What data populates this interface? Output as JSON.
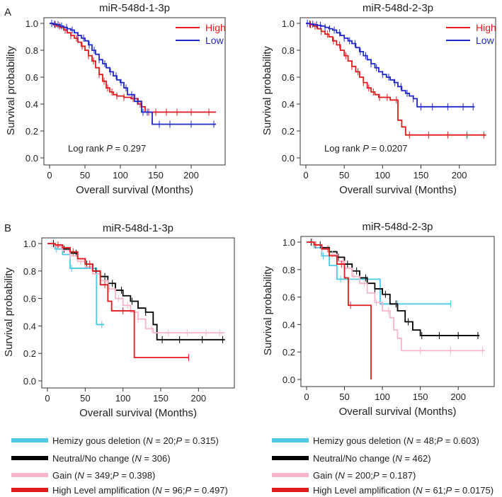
{
  "panel_labels": [
    "A",
    "B"
  ],
  "chart_data": [
    {
      "id": "A1",
      "type": "line",
      "title": "miR-548d-1-3p",
      "xlabel": "Overall survival (Months)",
      "ylabel": "Survival probability",
      "xlim": [
        0,
        240
      ],
      "ylim": [
        0,
        1.0
      ],
      "xticks": [
        0,
        50,
        100,
        150,
        200
      ],
      "xtick_labels": [
        "0",
        "50",
        "100",
        "150",
        "200"
      ],
      "yticks": [
        0,
        0.2,
        0.4,
        0.6,
        0.8,
        1.0
      ],
      "ytick_labels": [
        "0.0",
        "0.2",
        "0.4",
        "0.6",
        "0.8",
        "1.0"
      ],
      "annotation": {
        "prefix": "Log rank ",
        "p_symbol": "P",
        "suffix": " = 0.297"
      },
      "legend_position": "top-right",
      "series": [
        {
          "name": "High",
          "color": "#e31a1c",
          "x": [
            0,
            5,
            10,
            15,
            20,
            25,
            30,
            35,
            40,
            45,
            50,
            55,
            60,
            65,
            70,
            75,
            80,
            85,
            90,
            95,
            100,
            105,
            110,
            115,
            120,
            125,
            130,
            135,
            140,
            150,
            160,
            180,
            200,
            235
          ],
          "y": [
            1.0,
            0.99,
            0.98,
            0.97,
            0.95,
            0.93,
            0.91,
            0.89,
            0.86,
            0.83,
            0.8,
            0.76,
            0.72,
            0.67,
            0.62,
            0.57,
            0.52,
            0.49,
            0.47,
            0.46,
            0.46,
            0.45,
            0.45,
            0.44,
            0.44,
            0.4,
            0.38,
            0.34,
            0.34,
            0.34,
            0.34,
            0.34,
            0.34,
            0.34
          ],
          "censor_x": [
            8,
            14,
            22,
            30,
            38,
            46,
            55,
            62,
            70,
            77,
            82,
            88,
            95,
            105,
            118,
            128,
            140,
            150,
            165,
            180,
            200,
            225
          ]
        },
        {
          "name": "Low",
          "color": "#1f28c8",
          "x": [
            0,
            5,
            10,
            15,
            20,
            25,
            30,
            35,
            40,
            45,
            50,
            55,
            60,
            65,
            70,
            75,
            80,
            85,
            90,
            95,
            100,
            105,
            110,
            115,
            120,
            125,
            130,
            135,
            140,
            145,
            150,
            180,
            200,
            235
          ],
          "y": [
            1.0,
            0.995,
            0.99,
            0.98,
            0.97,
            0.96,
            0.95,
            0.93,
            0.91,
            0.89,
            0.87,
            0.84,
            0.8,
            0.77,
            0.73,
            0.7,
            0.67,
            0.64,
            0.61,
            0.58,
            0.56,
            0.52,
            0.47,
            0.47,
            0.42,
            0.42,
            0.34,
            0.34,
            0.34,
            0.25,
            0.25,
            0.25,
            0.25,
            0.25
          ],
          "censor_x": [
            3,
            7,
            12,
            17,
            24,
            32,
            40,
            48,
            56,
            63,
            70,
            78,
            86,
            94,
            101,
            108,
            116,
            124,
            132,
            138,
            155,
            170,
            200,
            232
          ]
        }
      ]
    },
    {
      "id": "A2",
      "type": "line",
      "title": "miR-548d-2-3p",
      "xlabel": "Overall survival (Months)",
      "ylabel": "Survival probability",
      "xlim": [
        0,
        240
      ],
      "ylim": [
        0,
        1.0
      ],
      "xticks": [
        0,
        50,
        100,
        150,
        200
      ],
      "xtick_labels": [
        "0",
        "50",
        "100",
        "150",
        "200"
      ],
      "yticks": [
        0,
        0.2,
        0.4,
        0.6,
        0.8,
        1.0
      ],
      "ytick_labels": [
        "0.0",
        "0.2",
        "0.4",
        "0.6",
        "0.8",
        "1.0"
      ],
      "annotation": {
        "prefix": "Log rank ",
        "p_symbol": "P",
        "suffix": " = 0.0207"
      },
      "legend_position": "top-right",
      "series": [
        {
          "name": "High",
          "color": "#e31a1c",
          "x": [
            0,
            5,
            10,
            15,
            20,
            25,
            30,
            35,
            40,
            45,
            50,
            55,
            60,
            65,
            70,
            75,
            80,
            85,
            90,
            95,
            100,
            105,
            110,
            115,
            120,
            125,
            130,
            140,
            160,
            180,
            200,
            235
          ],
          "y": [
            1.0,
            0.99,
            0.98,
            0.96,
            0.94,
            0.92,
            0.9,
            0.87,
            0.84,
            0.8,
            0.76,
            0.72,
            0.68,
            0.64,
            0.6,
            0.56,
            0.52,
            0.49,
            0.47,
            0.45,
            0.45,
            0.45,
            0.43,
            0.43,
            0.28,
            0.23,
            0.17,
            0.17,
            0.17,
            0.17,
            0.17,
            0.17
          ],
          "censor_x": [
            6,
            12,
            20,
            28,
            36,
            44,
            52,
            60,
            68,
            75,
            82,
            88,
            96,
            106,
            118,
            135,
            160,
            185,
            210,
            232
          ]
        },
        {
          "name": "Low",
          "color": "#1f28c8",
          "x": [
            0,
            5,
            10,
            15,
            20,
            25,
            30,
            35,
            40,
            45,
            50,
            55,
            60,
            65,
            70,
            75,
            80,
            85,
            90,
            95,
            100,
            105,
            110,
            115,
            120,
            125,
            130,
            135,
            140,
            145,
            150,
            180,
            200,
            220
          ],
          "y": [
            1.0,
            0.995,
            0.99,
            0.985,
            0.98,
            0.97,
            0.96,
            0.95,
            0.93,
            0.91,
            0.89,
            0.87,
            0.85,
            0.82,
            0.79,
            0.76,
            0.73,
            0.7,
            0.67,
            0.64,
            0.62,
            0.6,
            0.58,
            0.56,
            0.53,
            0.5,
            0.48,
            0.46,
            0.44,
            0.38,
            0.38,
            0.38,
            0.38,
            0.38
          ],
          "censor_x": [
            2,
            5,
            9,
            14,
            19,
            25,
            31,
            37,
            44,
            50,
            57,
            64,
            71,
            78,
            85,
            92,
            100,
            108,
            116,
            124,
            132,
            140,
            150,
            165,
            185,
            205,
            218
          ]
        }
      ]
    },
    {
      "id": "B1",
      "type": "line",
      "title": "miR-548d-1-3p",
      "xlabel": "Overall survival (Months)",
      "ylabel": "Survival probability",
      "xlim": [
        0,
        240
      ],
      "ylim": [
        0,
        1.0
      ],
      "xticks": [
        0,
        50,
        100,
        150,
        200
      ],
      "xtick_labels": [
        "0",
        "50",
        "100",
        "150",
        "200"
      ],
      "yticks": [
        0,
        0.2,
        0.4,
        0.6,
        0.8,
        1.0
      ],
      "ytick_labels": [
        "0.0",
        "0.2",
        "0.4",
        "0.6",
        "0.8",
        "1.0"
      ],
      "series": [
        {
          "name": "Hemizy gous deletion",
          "color": "#4ec8e6",
          "x": [
            0,
            10,
            20,
            30,
            35,
            60,
            65,
            75
          ],
          "y": [
            1.0,
            0.96,
            0.92,
            0.82,
            0.82,
            0.82,
            0.41,
            0.41
          ],
          "censor_x": [
            12,
            32,
            72
          ]
        },
        {
          "name": "Neutral/No change",
          "color": "#000000",
          "x": [
            0,
            10,
            20,
            30,
            40,
            50,
            60,
            70,
            80,
            90,
            100,
            110,
            120,
            130,
            140,
            145,
            160,
            180,
            200,
            235
          ],
          "y": [
            1.0,
            0.98,
            0.96,
            0.93,
            0.89,
            0.85,
            0.8,
            0.76,
            0.71,
            0.66,
            0.62,
            0.58,
            0.53,
            0.5,
            0.41,
            0.3,
            0.3,
            0.3,
            0.3,
            0.3
          ],
          "censor_x": [
            8,
            22,
            38,
            52,
            64,
            76,
            86,
            98,
            112,
            130,
            152,
            175,
            205,
            232
          ]
        },
        {
          "name": "Gain",
          "color": "#f7b6c8",
          "x": [
            0,
            10,
            20,
            30,
            40,
            50,
            60,
            70,
            80,
            90,
            100,
            110,
            120,
            130,
            140,
            150,
            160,
            180,
            200,
            235
          ],
          "y": [
            1.0,
            0.98,
            0.95,
            0.91,
            0.87,
            0.83,
            0.78,
            0.73,
            0.67,
            0.6,
            0.55,
            0.5,
            0.45,
            0.38,
            0.35,
            0.35,
            0.35,
            0.35,
            0.35,
            0.35
          ],
          "censor_x": [
            6,
            18,
            30,
            44,
            58,
            70,
            82,
            94,
            106,
            120,
            138,
            160,
            185,
            210,
            228
          ]
        },
        {
          "name": "High Level amplification",
          "color": "#e31a1c",
          "x": [
            0,
            10,
            20,
            30,
            40,
            50,
            60,
            70,
            80,
            85,
            90,
            100,
            110,
            115,
            140,
            160,
            187
          ],
          "y": [
            1.0,
            0.99,
            0.97,
            0.94,
            0.89,
            0.85,
            0.8,
            0.7,
            0.58,
            0.51,
            0.51,
            0.51,
            0.51,
            0.17,
            0.17,
            0.17,
            0.17
          ],
          "censor_x": [
            14,
            34,
            56,
            76,
            100,
            187
          ]
        }
      ],
      "legend": [
        {
          "label": "Hemizy gous deletion (",
          "n_symbol": "N",
          "n_text": " = 20;",
          "p_symbol": "P",
          "p_text": " = 0.315)"
        },
        {
          "label": "Neutral/No change (",
          "n_symbol": "N",
          "n_text": " = 306)",
          "p_symbol": "",
          "p_text": ""
        },
        {
          "label": "Gain (",
          "n_symbol": "N",
          "n_text": " = 349;",
          "p_symbol": "P",
          "p_text": " = 0.398)"
        },
        {
          "label": "High Level amplification (",
          "n_symbol": "N",
          "n_text": " = 96;",
          "p_symbol": "P",
          "p_text": " = 0.497)"
        }
      ]
    },
    {
      "id": "B2",
      "type": "line",
      "title": "miR-548d-2-3p",
      "xlabel": "Overall survival (Months)",
      "ylabel": "Survival probability",
      "xlim": [
        0,
        240
      ],
      "ylim": [
        0,
        1.0
      ],
      "xticks": [
        0,
        50,
        100,
        150,
        200
      ],
      "xtick_labels": [
        "0",
        "50",
        "100",
        "150",
        "200"
      ],
      "yticks": [
        0,
        0.2,
        0.4,
        0.6,
        0.8,
        1.0
      ],
      "ytick_labels": [
        "0.0",
        "0.2",
        "0.4",
        "0.6",
        "0.8",
        "1.0"
      ],
      "series": [
        {
          "name": "Hemizy gous deletion",
          "color": "#4ec8e6",
          "x": [
            0,
            10,
            20,
            30,
            40,
            50,
            60,
            70,
            90,
            97,
            110,
            150,
            190
          ],
          "y": [
            1.0,
            0.96,
            0.9,
            0.83,
            0.73,
            0.73,
            0.73,
            0.73,
            0.73,
            0.55,
            0.55,
            0.55,
            0.55
          ],
          "censor_x": [
            8,
            22,
            45,
            80,
            120,
            190
          ]
        },
        {
          "name": "Neutral/No change",
          "color": "#000000",
          "x": [
            0,
            10,
            20,
            30,
            40,
            50,
            60,
            70,
            80,
            90,
            100,
            110,
            120,
            130,
            140,
            150,
            160,
            180,
            200,
            228
          ],
          "y": [
            1.0,
            0.98,
            0.96,
            0.93,
            0.89,
            0.84,
            0.79,
            0.74,
            0.7,
            0.66,
            0.62,
            0.55,
            0.5,
            0.42,
            0.36,
            0.32,
            0.32,
            0.32,
            0.32,
            0.32
          ],
          "censor_x": [
            6,
            18,
            30,
            42,
            54,
            66,
            78,
            90,
            104,
            118,
            134,
            152,
            175,
            200,
            226
          ]
        },
        {
          "name": "Gain",
          "color": "#f7b6c8",
          "x": [
            0,
            10,
            20,
            30,
            40,
            50,
            60,
            70,
            80,
            90,
            100,
            110,
            115,
            120,
            125,
            140,
            160,
            180,
            200,
            235
          ],
          "y": [
            1.0,
            0.98,
            0.95,
            0.91,
            0.86,
            0.81,
            0.75,
            0.7,
            0.63,
            0.56,
            0.5,
            0.45,
            0.36,
            0.3,
            0.21,
            0.21,
            0.21,
            0.21,
            0.21,
            0.21
          ],
          "censor_x": [
            8,
            20,
            34,
            48,
            62,
            76,
            92,
            108,
            150,
            190,
            232
          ]
        },
        {
          "name": "High Level amplification",
          "color": "#e31a1c",
          "x": [
            0,
            10,
            20,
            30,
            40,
            50,
            55,
            60,
            80,
            85
          ],
          "y": [
            1.0,
            0.98,
            0.95,
            0.9,
            0.84,
            0.74,
            0.54,
            0.54,
            0.54,
            0.0
          ],
          "censor_x": [
            12,
            28,
            46,
            58
          ]
        }
      ],
      "legend": [
        {
          "label": "Hemizy gous deletion (",
          "n_symbol": "N",
          "n_text": " = 48;",
          "p_symbol": "P",
          "p_text": " = 0.603)"
        },
        {
          "label": "Neutral/No change (",
          "n_symbol": "N",
          "n_text": " = 462)",
          "p_symbol": "",
          "p_text": ""
        },
        {
          "label": "Gain (",
          "n_symbol": "N",
          "n_text": " = 200;",
          "p_symbol": "P",
          "p_text": " = 0.187)"
        },
        {
          "label": "High Level amplification (",
          "n_symbol": "N",
          "n_text": " = 61;",
          "p_symbol": "P",
          "p_text": " = 0.0175)"
        }
      ]
    }
  ]
}
